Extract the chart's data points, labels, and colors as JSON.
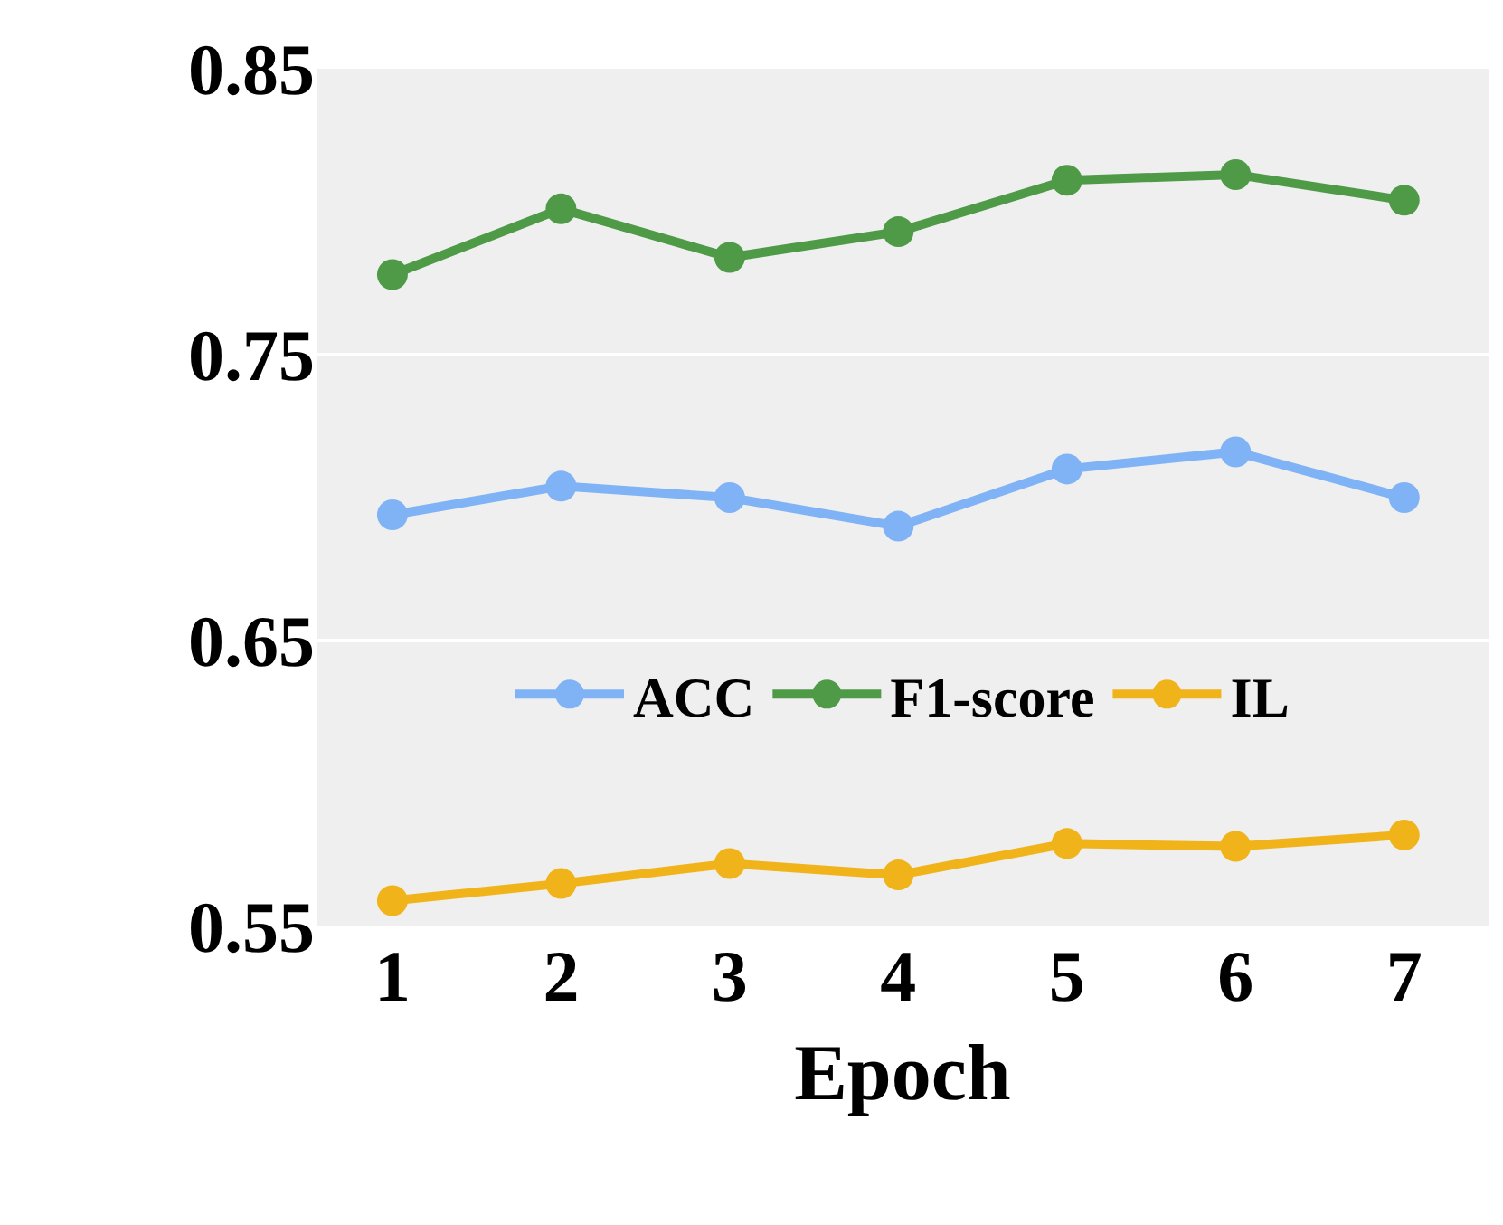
{
  "chart_data": {
    "type": "line",
    "xlabel": "Epoch",
    "categories": [
      "1",
      "2",
      "3",
      "4",
      "5",
      "6",
      "7"
    ],
    "series": [
      {
        "name": "ACC",
        "color": "#7fb3f5",
        "values": [
          0.694,
          0.704,
          0.7,
          0.69,
          0.71,
          0.716,
          0.7
        ]
      },
      {
        "name": "F1-score",
        "color": "#4e9a47",
        "values": [
          0.778,
          0.801,
          0.784,
          0.793,
          0.811,
          0.813,
          0.804
        ]
      },
      {
        "name": "IL",
        "color": "#f0b31a",
        "values": [
          0.559,
          0.565,
          0.572,
          0.568,
          0.579,
          0.578,
          0.582
        ]
      }
    ],
    "ylim": [
      0.55,
      0.85
    ],
    "yticks": [
      0.55,
      0.65,
      0.75,
      0.85
    ],
    "grid": "y",
    "legend": "bottom",
    "marker": "circle",
    "line_style": "solid"
  }
}
